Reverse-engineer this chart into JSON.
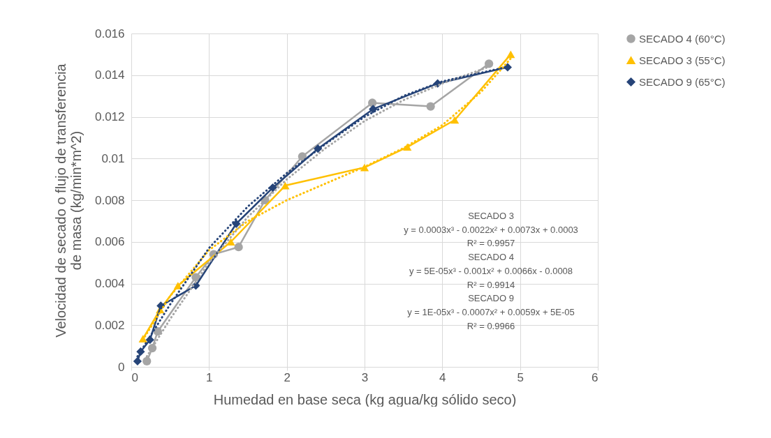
{
  "chart_data": {
    "type": "line",
    "xlabel": "Humedad en base seca (kg agua/kg sólido seco)",
    "ylabel": "Velocidad de secado o flujo de transferencia de masa (kg/min*m^2)",
    "xlim": [
      0,
      6
    ],
    "xticks": [
      0,
      1,
      2,
      3,
      4,
      5,
      6
    ],
    "ylim": [
      0,
      0.016
    ],
    "yticks": [
      0,
      0.002,
      0.004,
      0.006,
      0.008,
      0.01,
      0.012,
      0.014,
      0.016
    ],
    "grid": true,
    "legend": "right",
    "line_style": "solid",
    "series": [
      {
        "name": "SECADO 4 (60°C)",
        "color": "#a5a5a5",
        "marker": "circle",
        "x": [
          0.2,
          0.27,
          0.34,
          0.83,
          1.06,
          1.38,
          1.72,
          2.2,
          3.1,
          3.85,
          4.6
        ],
        "values": [
          0.00027,
          0.0009,
          0.0017,
          0.0043,
          0.0054,
          0.00575,
          0.008,
          0.0101,
          0.01267,
          0.0125,
          0.01455
        ]
      },
      {
        "name": "SECADO 3 (55°C)",
        "color": "#ffc000",
        "marker": "triangle",
        "x": [
          0.15,
          0.37,
          0.6,
          1.28,
          1.98,
          3.0,
          3.55,
          4.16,
          4.88
        ],
        "values": [
          0.00135,
          0.00275,
          0.0039,
          0.006,
          0.0087,
          0.00957,
          0.01055,
          0.01185,
          0.015
        ]
      },
      {
        "name": "SECADO 9 (65°C)",
        "color": "#264478",
        "marker": "diamond",
        "x": [
          0.08,
          0.12,
          0.24,
          0.38,
          0.83,
          1.35,
          1.82,
          2.4,
          3.11,
          3.94,
          4.84
        ],
        "values": [
          0.00027,
          0.00073,
          0.0013,
          0.00293,
          0.0039,
          0.00687,
          0.0086,
          0.01047,
          0.01237,
          0.0136,
          0.01438
        ]
      },
      {
        "color": "#a5a5a5",
        "line_style": "dotted",
        "x": [
          0.2,
          0.5,
          1,
          1.5,
          2,
          2.5,
          3,
          3.5,
          4,
          4.6
        ],
        "values": [
          0.0005,
          0.0023,
          0.005,
          0.0072,
          0.009,
          0.0105,
          0.0118,
          0.0128,
          0.0136,
          0.0144
        ]
      },
      {
        "color": "#ffc000",
        "line_style": "dotted",
        "x": [
          0.15,
          0.5,
          1,
          1.5,
          2,
          2.5,
          3,
          3.5,
          4,
          4.5,
          4.88
        ],
        "values": [
          0.0013,
          0.0034,
          0.0056,
          0.007,
          0.008,
          0.0088,
          0.0096,
          0.0105,
          0.0116,
          0.0132,
          0.0148
        ]
      },
      {
        "color": "#264478",
        "line_style": "dotted",
        "x": [
          0.08,
          0.5,
          1,
          1.5,
          2,
          2.5,
          3,
          3.5,
          4,
          4.84
        ],
        "values": [
          0.0005,
          0.003,
          0.0057,
          0.0077,
          0.0093,
          0.0107,
          0.012,
          0.013,
          0.0137,
          0.0144
        ]
      }
    ],
    "annotations": [
      "SECADO 3",
      "y = 0.0003x³ - 0.0022x² + 0.0073x + 0.0003",
      "R² = 0.9957",
      "SECADO 4",
      "y = 5E-05x³ - 0.001x² + 0.0066x - 0.0008",
      "R² = 0.9914",
      "SECADO 9",
      "y = 1E-05x³ - 0.0007x² + 0.0059x + 5E-05",
      "R² = 0.9966"
    ]
  }
}
